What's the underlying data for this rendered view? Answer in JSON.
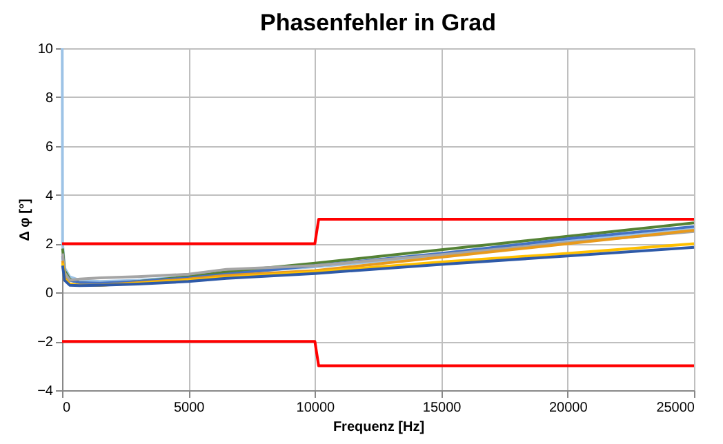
{
  "chart_data": {
    "type": "line",
    "title": "Phasenfehler in Grad",
    "xlabel": "Frequenz [Hz]",
    "ylabel": "Δ φ [°]",
    "xlim": [
      0,
      25000
    ],
    "xticks": [
      0,
      5000,
      10000,
      15000,
      20000,
      25000
    ],
    "ylim": [
      -4,
      10
    ],
    "yticks": [
      -4,
      -2,
      0,
      2,
      4,
      6,
      8,
      10
    ],
    "grid": true,
    "legend": false,
    "marker": "none",
    "line_style": "solid",
    "x": [
      20,
      100,
      300,
      700,
      1500,
      3000,
      5000,
      6500,
      10000,
      15000,
      20000,
      25000
    ],
    "series": [
      {
        "color": "#9dc3e6",
        "x": [
          5,
          20,
          100,
          300,
          700,
          1500,
          3000,
          5000,
          6500,
          10000,
          15000,
          20000,
          25000
        ],
        "values": [
          10,
          2.0,
          1.0,
          0.65,
          0.5,
          0.45,
          0.5,
          0.65,
          0.8,
          1.05,
          1.5,
          2.1,
          2.6
        ]
      },
      {
        "color": "#548235",
        "values": [
          1.8,
          0.9,
          0.55,
          0.4,
          0.35,
          0.45,
          0.65,
          0.85,
          1.2,
          1.75,
          2.3,
          2.85
        ]
      },
      {
        "color": "#4472c4",
        "values": [
          1.5,
          0.8,
          0.5,
          0.4,
          0.38,
          0.45,
          0.6,
          0.75,
          1.1,
          1.6,
          2.2,
          2.7
        ]
      },
      {
        "color": "#a5a5a5",
        "values": [
          1.6,
          0.8,
          0.5,
          0.55,
          0.6,
          0.65,
          0.75,
          0.95,
          1.1,
          1.55,
          2.05,
          2.5
        ]
      },
      {
        "color": "#e89a1c",
        "values": [
          1.3,
          0.6,
          0.35,
          0.3,
          0.3,
          0.4,
          0.55,
          0.7,
          0.9,
          1.45,
          2.0,
          2.55
        ]
      },
      {
        "color": "#ffc000",
        "values": [
          1.2,
          0.55,
          0.35,
          0.3,
          0.3,
          0.38,
          0.5,
          0.62,
          0.85,
          1.25,
          1.6,
          2.0
        ]
      },
      {
        "color": "#2e5aa8",
        "values": [
          1.1,
          0.5,
          0.3,
          0.28,
          0.3,
          0.35,
          0.45,
          0.58,
          0.78,
          1.15,
          1.5,
          1.85
        ]
      },
      {
        "color": "#ff0000",
        "x": [
          0,
          10000,
          10150,
          25000
        ],
        "values": [
          2,
          2,
          3,
          3
        ]
      },
      {
        "color": "#ff0000",
        "x": [
          0,
          10000,
          10150,
          25000
        ],
        "values": [
          -2,
          -2,
          -3,
          -3
        ]
      }
    ]
  }
}
